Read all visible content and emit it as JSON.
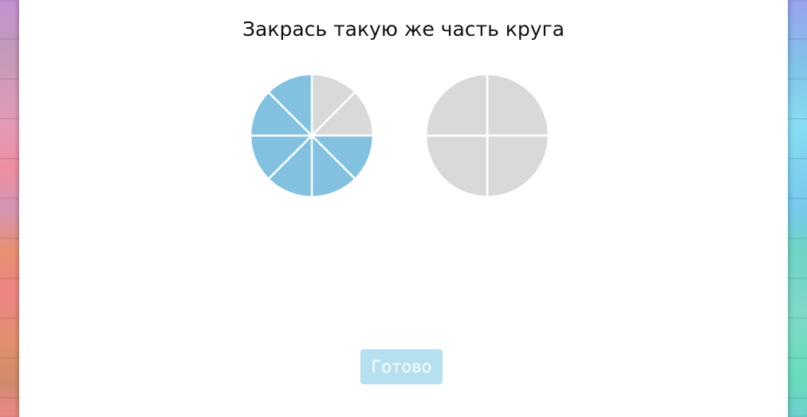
{
  "title": "Закрась такую же часть круга",
  "sample_circle": {
    "parts": 8,
    "filled": 6,
    "filled_color": "#82c1e0",
    "empty_color": "#d9d9d9"
  },
  "answer_circle": {
    "parts": 4,
    "filled": 0,
    "filled_color": "#82c1e0",
    "empty_color": "#d9d9d9"
  },
  "done_button": "Готово",
  "colors": {
    "button_bg": "#b5e0ef"
  }
}
